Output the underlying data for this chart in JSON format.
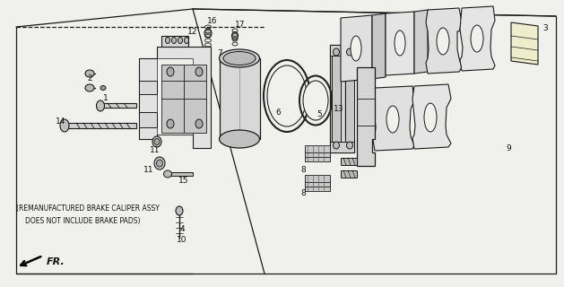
{
  "bg_color": "#f0f0ec",
  "line_color": "#1a1a1a",
  "text_color": "#111111",
  "note_line1": "(REMANUFACTURED BRAKE CALIPER ASSY",
  "note_line2": "DOES NOT INCLUDE BRAKE PADS)",
  "fr_label": "FR.",
  "figsize": [
    6.29,
    3.2
  ],
  "dpi": 100
}
